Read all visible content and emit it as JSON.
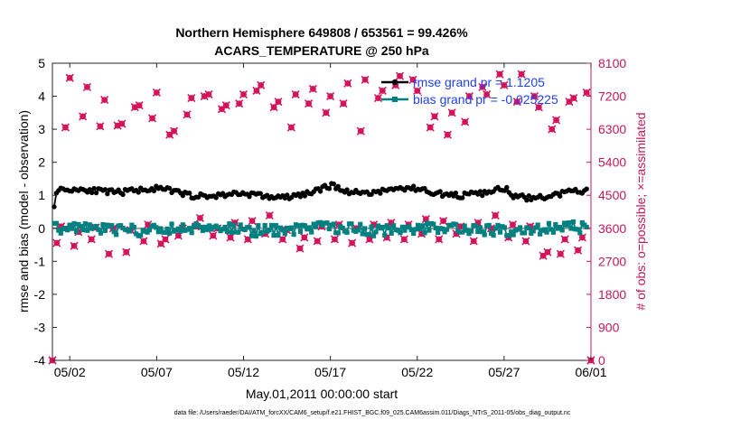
{
  "chart_data": {
    "type": "line",
    "title_line1": "Northern Hemisphere 649808 / 653561 = 99.426%",
    "title_line2": "ACARS_TEMPERATURE @ 250 hPa",
    "xlabel": "May.01,2011 00:00:00 start",
    "ylabel_left": "rmse and bias (model - observation)",
    "ylabel_right": "# of obs: o=possible; ×=assimilated",
    "footer": "data file: /Users/raeder/DAI/ATM_forcXX/CAM6_setup/f.e21.FHIST_BGC.f09_025.CAM6assim.011/Diags_NTrS_2011-05/obs_diag_output.nc",
    "xlim": [
      0,
      31
    ],
    "ylim_left": [
      -4,
      5
    ],
    "ylim_right": [
      0,
      8100
    ],
    "x_ticks": [
      {
        "pos": 1,
        "label": "05/02"
      },
      {
        "pos": 6,
        "label": "05/07"
      },
      {
        "pos": 11,
        "label": "05/12"
      },
      {
        "pos": 16,
        "label": "05/17"
      },
      {
        "pos": 21,
        "label": "05/22"
      },
      {
        "pos": 26,
        "label": "05/27"
      },
      {
        "pos": 31,
        "label": "06/01"
      }
    ],
    "y_left_ticks": [
      "-4",
      "-3",
      "-2",
      "-1",
      "0",
      "1",
      "2",
      "3",
      "4",
      "5"
    ],
    "y_right_ticks": [
      "0",
      "900",
      "1800",
      "2700",
      "3600",
      "4500",
      "5400",
      "6300",
      "7200",
      "8100"
    ],
    "legend": [
      {
        "label": "rmse grand pr = 1.1205",
        "color": "#000000"
      },
      {
        "label": "bias grand pr = -0.025225",
        "color": "#008080"
      }
    ],
    "colors": {
      "rmse": "#000000",
      "bias": "#008080",
      "obs": "#D4145A",
      "right_axis": "#C2185B",
      "legend_text": "#1F3FFF"
    },
    "obs_series": [
      {
        "day": 0.0,
        "n": 0
      },
      {
        "day": 0.25,
        "n": 3200
      },
      {
        "day": 0.5,
        "n": 3650
      },
      {
        "day": 0.75,
        "n": 6350
      },
      {
        "day": 1.0,
        "n": 7700
      },
      {
        "day": 1.25,
        "n": 3120
      },
      {
        "day": 1.5,
        "n": 3500
      },
      {
        "day": 1.75,
        "n": 6650
      },
      {
        "day": 2.0,
        "n": 7450
      },
      {
        "day": 2.25,
        "n": 3300
      },
      {
        "day": 2.5,
        "n": 3620
      },
      {
        "day": 2.75,
        "n": 6380
      },
      {
        "day": 3.0,
        "n": 7100
      },
      {
        "day": 3.25,
        "n": 2900
      },
      {
        "day": 3.5,
        "n": 3600
      },
      {
        "day": 3.75,
        "n": 6400
      },
      {
        "day": 4.0,
        "n": 6450
      },
      {
        "day": 4.25,
        "n": 2950
      },
      {
        "day": 4.5,
        "n": 3550
      },
      {
        "day": 4.75,
        "n": 6900
      },
      {
        "day": 5.0,
        "n": 6950
      },
      {
        "day": 5.25,
        "n": 3250
      },
      {
        "day": 5.5,
        "n": 3700
      },
      {
        "day": 5.75,
        "n": 6600
      },
      {
        "day": 6.0,
        "n": 7300
      },
      {
        "day": 6.25,
        "n": 3180
      },
      {
        "day": 6.5,
        "n": 3300
      },
      {
        "day": 6.75,
        "n": 6150
      },
      {
        "day": 7.0,
        "n": 6250
      },
      {
        "day": 7.25,
        "n": 3400
      },
      {
        "day": 7.5,
        "n": 3600
      },
      {
        "day": 7.75,
        "n": 6700
      },
      {
        "day": 8.0,
        "n": 7150
      },
      {
        "day": 8.25,
        "n": 3650
      },
      {
        "day": 8.5,
        "n": 3880
      },
      {
        "day": 8.75,
        "n": 7200
      },
      {
        "day": 9.0,
        "n": 7250
      },
      {
        "day": 9.25,
        "n": 3400
      },
      {
        "day": 9.5,
        "n": 3600
      },
      {
        "day": 9.75,
        "n": 6850
      },
      {
        "day": 10.0,
        "n": 6950
      },
      {
        "day": 10.25,
        "n": 3350
      },
      {
        "day": 10.5,
        "n": 3750
      },
      {
        "day": 10.75,
        "n": 7000
      },
      {
        "day": 11.0,
        "n": 7250
      },
      {
        "day": 11.25,
        "n": 3300
      },
      {
        "day": 11.5,
        "n": 3800
      },
      {
        "day": 11.75,
        "n": 7350
      },
      {
        "day": 12.0,
        "n": 7500
      },
      {
        "day": 12.25,
        "n": 3450
      },
      {
        "day": 12.5,
        "n": 3950
      },
      {
        "day": 12.75,
        "n": 6900
      },
      {
        "day": 13.0,
        "n": 7050
      },
      {
        "day": 13.25,
        "n": 3300
      },
      {
        "day": 13.5,
        "n": 3550
      },
      {
        "day": 13.75,
        "n": 6350
      },
      {
        "day": 14.0,
        "n": 7250
      },
      {
        "day": 14.25,
        "n": 3050
      },
      {
        "day": 14.5,
        "n": 3350
      },
      {
        "day": 14.75,
        "n": 7000
      },
      {
        "day": 15.0,
        "n": 7400
      },
      {
        "day": 15.25,
        "n": 3250
      },
      {
        "day": 15.5,
        "n": 3650
      },
      {
        "day": 15.75,
        "n": 6750
      },
      {
        "day": 16.0,
        "n": 7200
      },
      {
        "day": 16.25,
        "n": 3300
      },
      {
        "day": 16.5,
        "n": 3700
      },
      {
        "day": 16.75,
        "n": 7000
      },
      {
        "day": 17.0,
        "n": 7550
      },
      {
        "day": 17.25,
        "n": 3200
      },
      {
        "day": 17.5,
        "n": 3600
      },
      {
        "day": 17.75,
        "n": 6250
      },
      {
        "day": 18.0,
        "n": 7650
      },
      {
        "day": 18.25,
        "n": 3300
      },
      {
        "day": 18.5,
        "n": 3700
      },
      {
        "day": 18.75,
        "n": 7150
      },
      {
        "day": 19.0,
        "n": 7350
      },
      {
        "day": 19.25,
        "n": 3350
      },
      {
        "day": 19.5,
        "n": 3750
      },
      {
        "day": 19.75,
        "n": 7500
      },
      {
        "day": 20.0,
        "n": 7750
      },
      {
        "day": 20.25,
        "n": 3300
      },
      {
        "day": 20.5,
        "n": 3700
      },
      {
        "day": 20.75,
        "n": 7650
      },
      {
        "day": 21.0,
        "n": 7350
      },
      {
        "day": 21.25,
        "n": 3450
      },
      {
        "day": 21.5,
        "n": 3850
      },
      {
        "day": 21.75,
        "n": 6350
      },
      {
        "day": 22.0,
        "n": 6650
      },
      {
        "day": 22.25,
        "n": 3300
      },
      {
        "day": 22.5,
        "n": 3800
      },
      {
        "day": 22.75,
        "n": 6150
      },
      {
        "day": 23.0,
        "n": 6750
      },
      {
        "day": 23.25,
        "n": 3450
      },
      {
        "day": 23.5,
        "n": 3650
      },
      {
        "day": 23.75,
        "n": 6500
      },
      {
        "day": 24.0,
        "n": 7200
      },
      {
        "day": 24.25,
        "n": 3250
      },
      {
        "day": 24.5,
        "n": 3750
      },
      {
        "day": 24.75,
        "n": 7450
      },
      {
        "day": 25.0,
        "n": 7250
      },
      {
        "day": 25.25,
        "n": 3600
      },
      {
        "day": 25.5,
        "n": 3950
      },
      {
        "day": 25.75,
        "n": 7800
      },
      {
        "day": 26.0,
        "n": 7500
      },
      {
        "day": 26.25,
        "n": 3350
      },
      {
        "day": 26.5,
        "n": 3700
      },
      {
        "day": 26.75,
        "n": 7050
      },
      {
        "day": 27.0,
        "n": 7800
      },
      {
        "day": 27.25,
        "n": 3250
      },
      {
        "day": 27.5,
        "n": 3650
      },
      {
        "day": 27.75,
        "n": 7200
      },
      {
        "day": 28.0,
        "n": 6900
      },
      {
        "day": 28.25,
        "n": 2850
      },
      {
        "day": 28.5,
        "n": 2950
      },
      {
        "day": 28.75,
        "n": 6300
      },
      {
        "day": 29.0,
        "n": 6550
      },
      {
        "day": 29.25,
        "n": 2900
      },
      {
        "day": 29.5,
        "n": 3300
      },
      {
        "day": 29.75,
        "n": 7050
      },
      {
        "day": 30.0,
        "n": 7150
      },
      {
        "day": 30.25,
        "n": 3000
      },
      {
        "day": 30.5,
        "n": 3350
      },
      {
        "day": 30.75,
        "n": 7300
      },
      {
        "day": 31.0,
        "n": 0
      }
    ]
  }
}
